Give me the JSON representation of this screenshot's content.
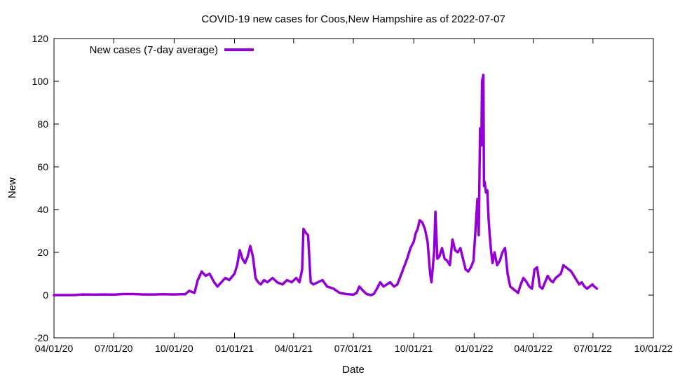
{
  "chart_data": {
    "type": "line",
    "title": "COVID-19 new cases for Coos,New Hampshire as of 2022-07-07",
    "xlabel": "Date",
    "ylabel": "New",
    "ylim": [
      -20,
      120
    ],
    "yticks": [
      -20,
      0,
      20,
      40,
      60,
      80,
      100,
      120
    ],
    "xlim": [
      "2020-04-01",
      "2022-10-01"
    ],
    "xticks": [
      {
        "date": "2020-04-01",
        "label": "04/01/20"
      },
      {
        "date": "2020-07-01",
        "label": "07/01/20"
      },
      {
        "date": "2020-10-01",
        "label": "10/01/20"
      },
      {
        "date": "2021-01-01",
        "label": "01/01/21"
      },
      {
        "date": "2021-04-01",
        "label": "04/01/21"
      },
      {
        "date": "2021-07-01",
        "label": "07/01/21"
      },
      {
        "date": "2021-10-01",
        "label": "10/01/21"
      },
      {
        "date": "2022-01-01",
        "label": "01/01/22"
      },
      {
        "date": "2022-04-01",
        "label": "04/01/22"
      },
      {
        "date": "2022-07-01",
        "label": "07/01/22"
      },
      {
        "date": "2022-10-01",
        "label": "10/01/22"
      }
    ],
    "grid": false,
    "legend_position": "top-left",
    "series": [
      {
        "name": "New cases (7-day average)",
        "color": "#9400d3",
        "x": [
          "2020-04-01",
          "2020-05-01",
          "2020-05-15",
          "2020-06-01",
          "2020-06-15",
          "2020-07-01",
          "2020-07-15",
          "2020-08-01",
          "2020-08-15",
          "2020-09-01",
          "2020-09-15",
          "2020-10-01",
          "2020-10-10",
          "2020-10-18",
          "2020-10-24",
          "2020-11-01",
          "2020-11-06",
          "2020-11-12",
          "2020-11-18",
          "2020-11-24",
          "2020-12-01",
          "2020-12-06",
          "2020-12-12",
          "2020-12-18",
          "2020-12-24",
          "2021-01-01",
          "2021-01-05",
          "2021-01-09",
          "2021-01-13",
          "2021-01-17",
          "2021-01-21",
          "2021-01-25",
          "2021-01-29",
          "2021-02-02",
          "2021-02-06",
          "2021-02-10",
          "2021-02-15",
          "2021-02-20",
          "2021-02-28",
          "2021-03-07",
          "2021-03-15",
          "2021-03-22",
          "2021-03-29",
          "2021-04-05",
          "2021-04-10",
          "2021-04-14",
          "2021-04-16",
          "2021-04-20",
          "2021-04-23",
          "2021-04-27",
          "2021-05-01",
          "2021-05-08",
          "2021-05-15",
          "2021-05-22",
          "2021-06-01",
          "2021-06-10",
          "2021-06-20",
          "2021-07-01",
          "2021-07-06",
          "2021-07-10",
          "2021-07-16",
          "2021-07-21",
          "2021-07-28",
          "2021-08-01",
          "2021-08-06",
          "2021-08-11",
          "2021-08-16",
          "2021-08-21",
          "2021-08-26",
          "2021-09-01",
          "2021-09-06",
          "2021-09-11",
          "2021-09-16",
          "2021-09-21",
          "2021-09-26",
          "2021-10-01",
          "2021-10-04",
          "2021-10-07",
          "2021-10-10",
          "2021-10-14",
          "2021-10-18",
          "2021-10-22",
          "2021-10-26",
          "2021-10-28",
          "2021-11-01",
          "2021-11-03",
          "2021-11-06",
          "2021-11-09",
          "2021-11-13",
          "2021-11-17",
          "2021-11-21",
          "2021-11-25",
          "2021-11-29",
          "2021-12-03",
          "2021-12-07",
          "2021-12-11",
          "2021-12-15",
          "2021-12-19",
          "2021-12-23",
          "2021-12-27",
          "2021-12-31",
          "2022-01-03",
          "2022-01-06",
          "2022-01-08",
          "2022-01-10",
          "2022-01-12",
          "2022-01-13",
          "2022-01-15",
          "2022-01-16",
          "2022-01-17",
          "2022-01-19",
          "2022-01-21",
          "2022-01-23",
          "2022-01-25",
          "2022-01-27",
          "2022-01-29",
          "2022-02-01",
          "2022-02-05",
          "2022-02-09",
          "2022-02-13",
          "2022-02-17",
          "2022-02-21",
          "2022-02-25",
          "2022-03-01",
          "2022-03-05",
          "2022-03-09",
          "2022-03-13",
          "2022-03-17",
          "2022-03-22",
          "2022-03-26",
          "2022-03-30",
          "2022-04-03",
          "2022-04-07",
          "2022-04-11",
          "2022-04-15",
          "2022-04-19",
          "2022-04-23",
          "2022-04-27",
          "2022-05-01",
          "2022-05-05",
          "2022-05-09",
          "2022-05-13",
          "2022-05-17",
          "2022-05-21",
          "2022-05-25",
          "2022-05-29",
          "2022-06-02",
          "2022-06-06",
          "2022-06-10",
          "2022-06-14",
          "2022-06-18",
          "2022-06-22",
          "2022-06-26",
          "2022-06-30",
          "2022-07-03",
          "2022-07-07"
        ],
        "y": [
          0,
          0,
          0.3,
          0.2,
          0.3,
          0.2,
          0.5,
          0.5,
          0.3,
          0.3,
          0.4,
          0.3,
          0.4,
          0.4,
          2,
          1,
          7,
          11,
          9,
          10,
          6,
          4,
          6,
          8,
          7,
          10,
          14,
          21,
          17,
          15,
          18,
          23,
          18,
          8,
          6,
          5,
          7,
          6,
          8,
          6,
          5,
          7,
          6,
          8,
          6,
          12,
          31,
          29,
          28,
          6,
          5,
          6,
          7,
          4,
          3,
          1,
          0.5,
          0.2,
          1,
          4,
          2,
          0.5,
          0,
          0.5,
          3,
          6,
          4,
          5,
          6,
          4,
          5,
          9,
          13,
          17,
          22,
          25,
          29,
          31,
          35,
          34,
          31,
          25,
          10,
          6,
          20,
          39,
          17,
          18,
          22,
          17,
          16,
          14,
          26,
          21,
          20,
          22,
          17,
          12,
          11,
          13,
          16,
          30,
          45,
          28,
          78,
          70,
          100,
          103,
          51,
          53,
          48,
          49,
          36,
          27,
          20,
          15,
          20,
          14,
          16,
          20,
          22,
          10,
          4,
          3,
          2,
          1,
          5,
          8,
          6,
          4,
          3,
          12,
          13,
          4,
          3,
          6,
          9,
          7,
          6,
          8,
          9,
          10,
          14,
          13,
          12,
          11,
          9,
          7,
          5,
          6,
          4,
          3,
          4,
          5,
          4,
          3
        ]
      }
    ]
  }
}
